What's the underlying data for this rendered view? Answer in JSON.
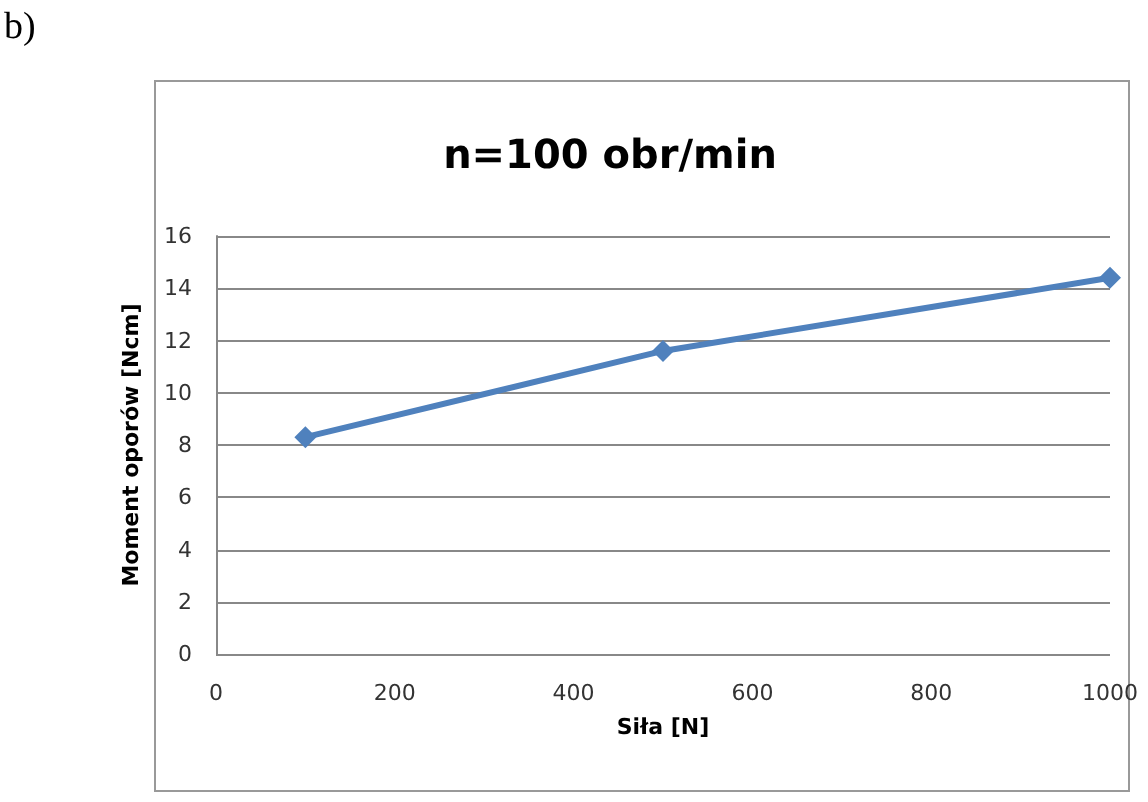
{
  "chart_data": {
    "type": "line",
    "title": "n=100 obr/min",
    "xlabel": "Siła [N]",
    "ylabel": "Moment oporów [Ncm]",
    "annotations": [
      "b)"
    ],
    "x": [
      100,
      500,
      1000
    ],
    "series": [
      {
        "color": "#4f81bd",
        "values": [
          8.3,
          11.6,
          14.4
        ]
      }
    ],
    "xlim": [
      0,
      1000
    ],
    "xticks": [
      0,
      200,
      400,
      600,
      800,
      1000
    ],
    "ylim": [
      0,
      16
    ],
    "yticks": [
      0,
      2,
      4,
      6,
      8,
      10,
      12,
      14,
      16
    ],
    "grid": "y",
    "marker": "diamond",
    "line_style": "solid"
  }
}
